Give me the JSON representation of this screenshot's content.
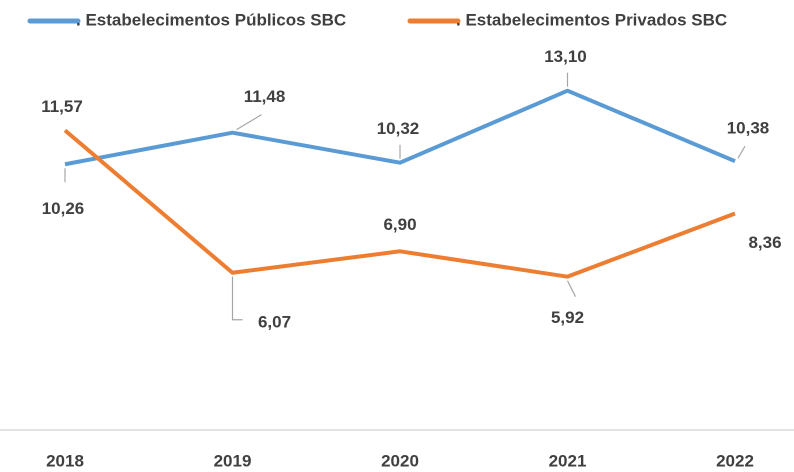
{
  "chart_data": {
    "type": "line",
    "categories": [
      "2018",
      "2019",
      "2020",
      "2021",
      "2022"
    ],
    "series": [
      {
        "name": ". Estabelecimentos Públicos SBC",
        "color": "#5b9bd5",
        "values": [
          10.26,
          11.48,
          10.32,
          13.1,
          10.38
        ],
        "value_labels": [
          "10,26",
          "11,48",
          "10,32",
          "13,10",
          "10,38"
        ]
      },
      {
        "name": ". Estabelecimentos Privados SBC",
        "color": "#ed7d31",
        "values": [
          11.57,
          6.07,
          6.9,
          5.92,
          8.36
        ],
        "value_labels": [
          "11,57",
          "6,07",
          "6,90",
          "5,92",
          "8,36"
        ]
      }
    ],
    "legend": "top"
  }
}
